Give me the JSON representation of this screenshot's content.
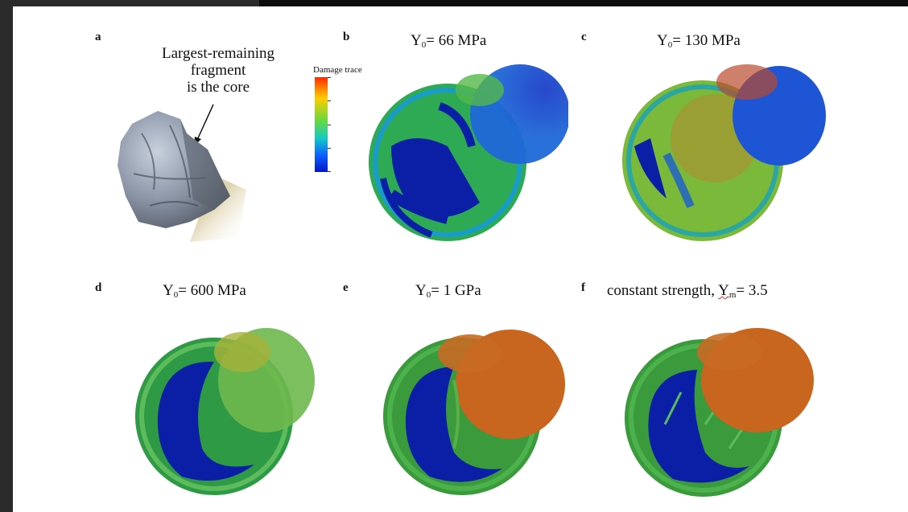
{
  "figure": {
    "annotation_text": "Largest-remaining\nfragment\nis the core",
    "annotation_lines": [
      "Largest-remaining",
      "fragment",
      "is the core"
    ],
    "colorbar_label": "Damage trace",
    "colors": {
      "background": "#2b2b2b",
      "figure_bg": "#ffffff",
      "intact_blue": "#0b1fa6",
      "damaged_green": "#3cae3c",
      "damaged_orange": "#c8651e"
    },
    "panels": [
      {
        "letter": "a",
        "title_prefix": "",
        "title_sub": "",
        "title_suffix": "",
        "content": "photo-of-core-fragment"
      },
      {
        "letter": "b",
        "title_prefix": "Y",
        "title_sub": "0",
        "title_suffix": "= 66 MPa"
      },
      {
        "letter": "c",
        "title_prefix": "Y",
        "title_sub": "0",
        "title_suffix": "= 130 MPa"
      },
      {
        "letter": "d",
        "title_prefix": "Y",
        "title_sub": "0",
        "title_suffix": "= 600 MPa"
      },
      {
        "letter": "e",
        "title_prefix": "Y",
        "title_sub": "0",
        "title_suffix": "= 1 GPa"
      },
      {
        "letter": "f",
        "title_prefix": "constant strength, ",
        "title_underlined": "Y",
        "title_sub": "m",
        "title_suffix": "= 3.5"
      }
    ]
  }
}
